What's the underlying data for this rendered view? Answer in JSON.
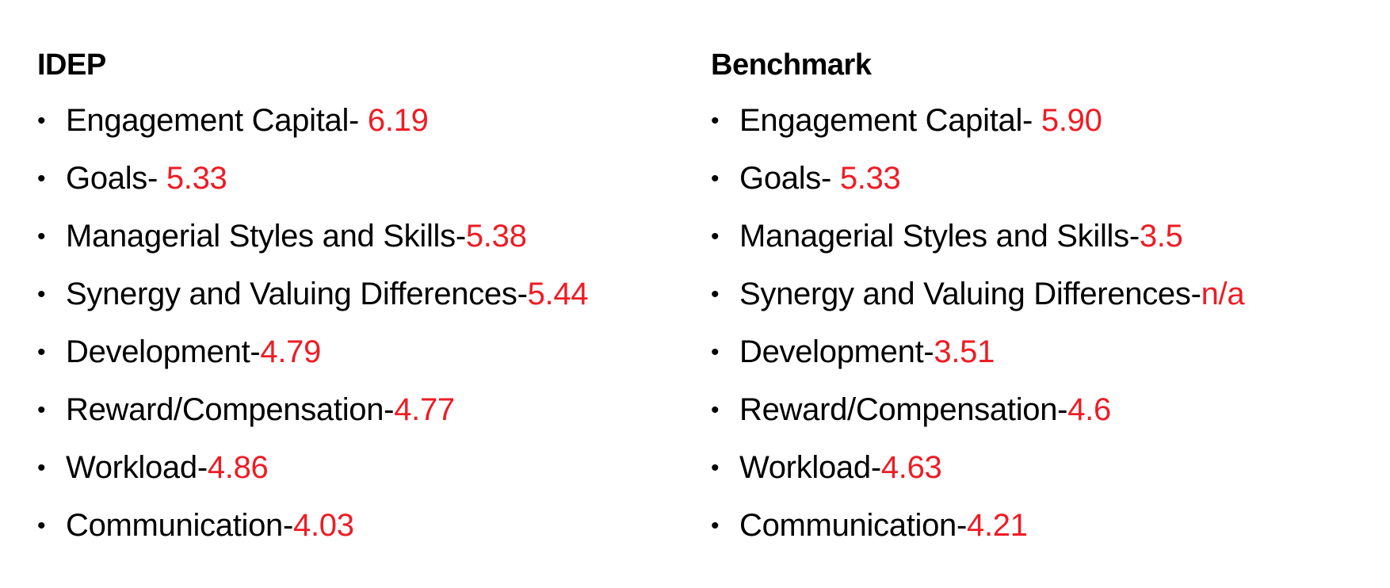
{
  "colors": {
    "value": "#ee1c25",
    "label": "#000000"
  },
  "left": {
    "heading": "IDEP",
    "items": [
      {
        "label": "Engagement Capital- ",
        "value": "6.19"
      },
      {
        "label": "Goals- ",
        "value": "5.33"
      },
      {
        "label": "Managerial Styles and Skills-",
        "value": "5.38"
      },
      {
        "label": "Synergy and Valuing Differences-",
        "value": "5.44"
      },
      {
        "label": "Development-",
        "value": "4.79"
      },
      {
        "label": "Reward/Compensation-",
        "value": "4.77"
      },
      {
        "label": "Workload-",
        "value": "4.86"
      },
      {
        "label": "Communication-",
        "value": "4.03"
      }
    ]
  },
  "right": {
    "heading": "Benchmark",
    "items": [
      {
        "label": "Engagement Capital- ",
        "value": "5.90"
      },
      {
        "label": "Goals- ",
        "value": "5.33"
      },
      {
        "label": "Managerial Styles and Skills-",
        "value": "3.5"
      },
      {
        "label": "Synergy and Valuing Differences-",
        "value": "n/a"
      },
      {
        "label": "Development-",
        "value": "3.51"
      },
      {
        "label": "Reward/Compensation-",
        "value": "4.6"
      },
      {
        "label": "Workload-",
        "value": "4.63"
      },
      {
        "label": "Communication-",
        "value": "4.21"
      }
    ]
  }
}
